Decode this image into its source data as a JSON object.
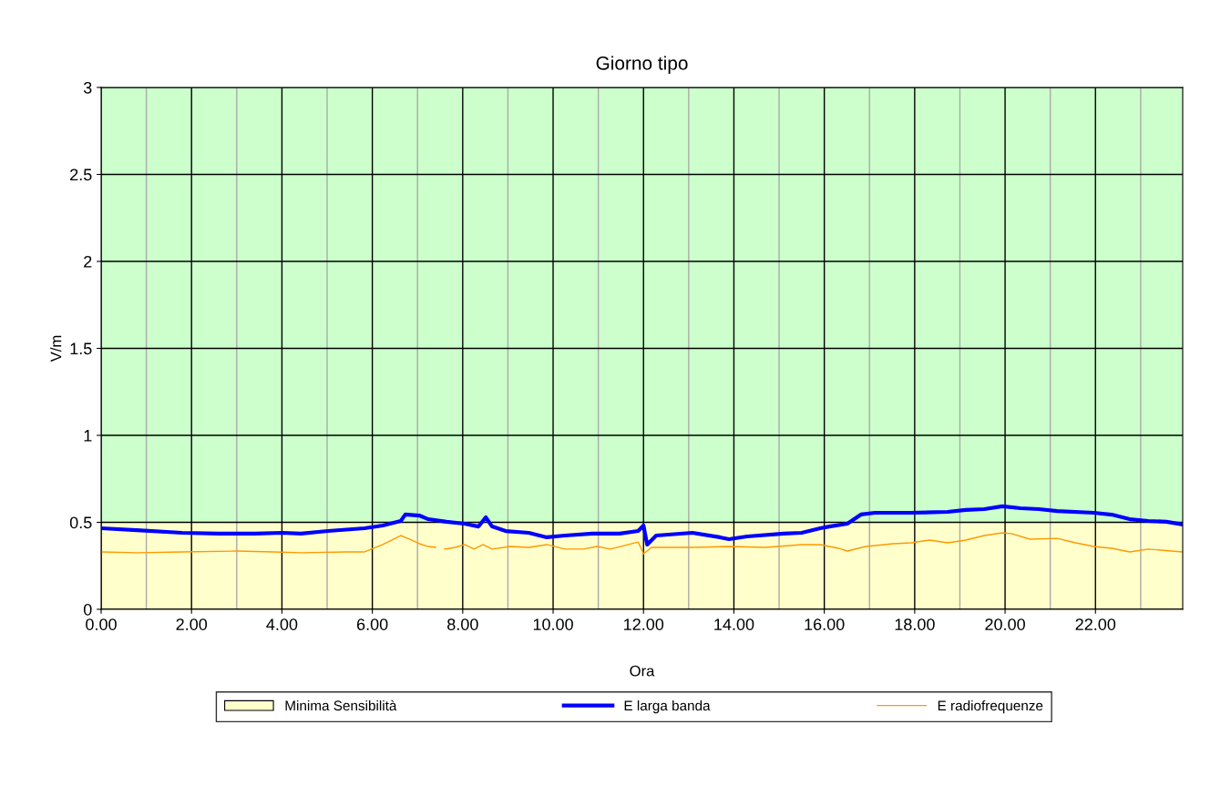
{
  "chart_data": {
    "type": "line",
    "title": "Giorno tipo",
    "xlabel": "Ora",
    "ylabel": "V/m",
    "xlim": [
      0,
      23.93
    ],
    "ylim": [
      0,
      3
    ],
    "xticks": [
      {
        "value": 0,
        "label": "0.00"
      },
      {
        "value": 1,
        "label": null
      },
      {
        "value": 2,
        "label": "2.00"
      },
      {
        "value": 3,
        "label": null
      },
      {
        "value": 4,
        "label": "4.00"
      },
      {
        "value": 5,
        "label": null
      },
      {
        "value": 6,
        "label": "6.00"
      },
      {
        "value": 7,
        "label": null
      },
      {
        "value": 8,
        "label": "8.00"
      },
      {
        "value": 9,
        "label": null
      },
      {
        "value": 10,
        "label": "10.00"
      },
      {
        "value": 11,
        "label": null
      },
      {
        "value": 12,
        "label": "12.00"
      },
      {
        "value": 13,
        "label": null
      },
      {
        "value": 14,
        "label": "14.00"
      },
      {
        "value": 15,
        "label": null
      },
      {
        "value": 16,
        "label": "16.00"
      },
      {
        "value": 17,
        "label": null
      },
      {
        "value": 18,
        "label": "18.00"
      },
      {
        "value": 19,
        "label": null
      },
      {
        "value": 20,
        "label": "20.00"
      },
      {
        "value": 21,
        "label": null
      },
      {
        "value": 22,
        "label": "22.00"
      },
      {
        "value": 23,
        "label": null
      }
    ],
    "yticks": [
      0,
      0.5,
      1,
      1.5,
      2,
      2.5,
      3
    ],
    "grid": true,
    "legend": "bottom",
    "bands": [
      {
        "axis": "y",
        "from": 0.5,
        "to": 3,
        "color": "#ccffcc"
      }
    ],
    "series": [
      {
        "name": "Minima Sensibilità",
        "type": "area",
        "color": "#ffffcc",
        "x": [
          0,
          23.93
        ],
        "values": [
          0.5,
          0.5
        ]
      },
      {
        "name": "E larga banda",
        "color": "#0000ff",
        "x": [
          0,
          0.79,
          1.79,
          2.6,
          3.41,
          4.01,
          4.42,
          5.02,
          5.83,
          6.23,
          6.63,
          6.73,
          7.04,
          7.24,
          7.64,
          8.04,
          8.35,
          8.51,
          8.65,
          8.95,
          9.46,
          9.86,
          10.26,
          10.87,
          11.47,
          11.88,
          12.0,
          12.08,
          12.28,
          13.08,
          13.69,
          13.89,
          14.29,
          15.1,
          15.5,
          15.91,
          16.11,
          16.51,
          16.81,
          17.12,
          17.92,
          18.73,
          19.13,
          19.54,
          19.94,
          20.34,
          20.75,
          21.15,
          21.96,
          22.36,
          22.76,
          23.17,
          23.57,
          23.93
        ],
        "values": [
          0.466,
          0.455,
          0.44,
          0.435,
          0.435,
          0.44,
          0.435,
          0.45,
          0.466,
          0.482,
          0.508,
          0.545,
          0.539,
          0.518,
          0.503,
          0.492,
          0.476,
          0.529,
          0.476,
          0.45,
          0.44,
          0.414,
          0.424,
          0.435,
          0.435,
          0.45,
          0.482,
          0.372,
          0.424,
          0.44,
          0.414,
          0.403,
          0.419,
          0.435,
          0.44,
          0.466,
          0.476,
          0.492,
          0.545,
          0.555,
          0.555,
          0.56,
          0.571,
          0.576,
          0.592,
          0.581,
          0.576,
          0.565,
          0.555,
          0.544,
          0.518,
          0.508,
          0.503,
          0.487
        ]
      },
      {
        "name": "E radiofrequenze",
        "color": "#ff9900",
        "x": [
          0,
          0.79,
          1.79,
          3.0,
          3.81,
          4.42,
          5.44,
          5.83,
          6.23,
          6.63,
          6.83,
          7.04,
          7.24,
          7.4,
          7.5,
          7.6,
          7.84,
          8.04,
          8.25,
          8.45,
          8.65,
          9.05,
          9.46,
          9.86,
          10.26,
          10.67,
          10.97,
          11.27,
          11.88,
          12.0,
          12.18,
          13.08,
          13.89,
          14.69,
          15.5,
          15.91,
          16.31,
          16.51,
          16.92,
          17.52,
          17.92,
          18.33,
          18.73,
          19.13,
          19.54,
          19.94,
          20.14,
          20.55,
          21.15,
          21.56,
          21.96,
          22.36,
          22.76,
          23.17,
          23.93
        ],
        "values": [
          0.33,
          0.325,
          0.33,
          0.335,
          0.33,
          0.325,
          0.33,
          0.33,
          0.372,
          0.424,
          0.403,
          0.377,
          0.361,
          0.356,
          null,
          0.346,
          0.356,
          0.372,
          0.346,
          0.372,
          0.346,
          0.361,
          0.356,
          0.372,
          0.346,
          0.346,
          0.361,
          0.346,
          0.387,
          0.319,
          0.356,
          0.356,
          0.361,
          0.356,
          0.372,
          0.372,
          0.351,
          0.335,
          0.361,
          0.377,
          0.382,
          0.398,
          0.382,
          0.398,
          0.424,
          0.44,
          0.435,
          0.403,
          0.408,
          0.382,
          0.361,
          0.351,
          0.33,
          0.346,
          0.33
        ]
      }
    ]
  }
}
